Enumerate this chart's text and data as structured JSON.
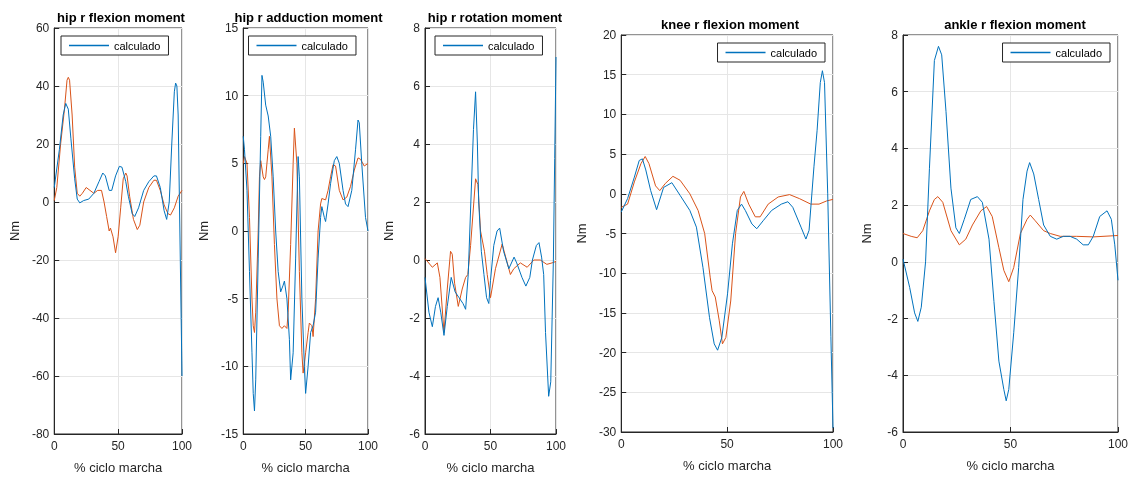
{
  "chart_data": [
    {
      "type": "line",
      "title": "hip r flexion moment",
      "xlabel": "% ciclo marcha",
      "ylabel": "Nm",
      "xlim": [
        0,
        100
      ],
      "xticks": [
        0,
        50,
        100
      ],
      "ylim": [
        -80,
        60
      ],
      "yticks": [
        -80,
        -60,
        -40,
        -20,
        0,
        20,
        40,
        60
      ],
      "grid": true,
      "legend": "top",
      "series": [
        {
          "name": "calculado",
          "color": "#0072bd",
          "x": [
            0,
            4,
            7,
            9,
            11,
            13,
            16,
            18,
            20,
            23,
            27,
            31,
            35,
            38,
            40,
            43,
            45,
            48,
            51,
            53,
            56,
            58,
            61,
            63,
            66,
            70,
            74,
            78,
            80,
            83,
            86,
            88,
            90,
            92,
            94,
            95,
            96,
            97,
            98,
            99,
            100
          ],
          "values": [
            5,
            18,
            30,
            34,
            32,
            22,
            8,
            1,
            -0.3,
            0.5,
            1,
            3,
            7,
            10,
            9,
            4,
            4,
            9,
            12.3,
            12,
            7,
            2,
            -4,
            -5,
            -2,
            4,
            7,
            9,
            9,
            5,
            -3,
            -6,
            0,
            20,
            38,
            41,
            40,
            30,
            0,
            -30,
            -60
          ]
        },
        {
          "color": "#d95319",
          "x": [
            0,
            2,
            5,
            8,
            10,
            11,
            12,
            14,
            16,
            18,
            20,
            22,
            25,
            28,
            31,
            34,
            37,
            39,
            41,
            43,
            44,
            46,
            48,
            50,
            52,
            54,
            56,
            57,
            59,
            62,
            65,
            67,
            70,
            74,
            78,
            80,
            83,
            86,
            89,
            91,
            94,
            97,
            100
          ],
          "values": [
            0.5,
            5,
            20,
            32,
            42,
            43,
            42,
            30,
            12,
            3,
            2,
            3,
            5,
            4,
            3,
            4,
            4,
            0,
            -5,
            -10,
            -9,
            -12,
            -17.5,
            -12,
            -2,
            8,
            10,
            9,
            2,
            -6,
            -9.5,
            -8,
            0,
            5,
            7.5,
            7.5,
            4,
            -1,
            -4,
            -4.5,
            -2,
            2,
            4
          ]
        }
      ]
    },
    {
      "type": "line",
      "title": "hip r adduction moment",
      "xlabel": "% ciclo marcha",
      "ylabel": "Nm",
      "xlim": [
        0,
        100
      ],
      "xticks": [
        0,
        50,
        100
      ],
      "ylim": [
        -15,
        15
      ],
      "yticks": [
        -15,
        -10,
        -5,
        0,
        5,
        10,
        15
      ],
      "grid": true,
      "legend": "top",
      "series": [
        {
          "name": "calculado",
          "color": "#0072bd",
          "x": [
            0,
            1,
            3,
            5,
            7,
            8,
            9,
            10,
            12,
            14,
            15,
            16,
            18,
            20,
            22,
            24,
            26,
            28,
            30,
            32,
            33,
            35,
            37,
            38,
            40,
            42,
            44,
            45,
            47,
            49,
            50,
            52,
            54,
            56,
            58,
            60,
            62,
            63,
            65,
            66,
            68,
            70,
            73,
            75,
            77,
            80,
            82,
            84,
            87,
            90,
            92,
            93,
            95,
            98,
            100
          ],
          "values": [
            7,
            6,
            3,
            -3,
            -9,
            -12,
            -13.3,
            -11,
            -2,
            7,
            11.5,
            11,
            9.3,
            8.5,
            7,
            4,
            0,
            -3,
            -4.5,
            -4,
            -3.7,
            -5,
            -8,
            -11,
            -9,
            -2,
            5.5,
            4,
            -5,
            -10,
            -12,
            -10,
            -7.5,
            -7,
            -6,
            -2,
            1,
            1.8,
            1,
            0.7,
            2,
            3.5,
            5.2,
            5.5,
            5,
            3,
            2,
            1.8,
            3,
            6,
            8.2,
            8,
            5,
            1,
            0
          ]
        },
        {
          "color": "#d95319",
          "x": [
            0,
            1,
            3,
            5,
            7,
            8,
            9,
            10,
            12,
            13,
            14,
            16,
            17,
            18,
            20,
            21,
            23,
            25,
            27,
            29,
            31,
            33,
            35,
            36,
            38,
            40,
            41,
            43,
            45,
            47,
            48,
            50,
            52,
            53,
            55,
            56,
            58,
            60,
            62,
            63,
            66,
            68,
            70,
            72,
            74,
            77,
            80,
            83,
            86,
            89,
            92,
            94,
            97,
            100
          ],
          "values": [
            5,
            5.5,
            5,
            1,
            -5,
            -7,
            -7.5,
            -6,
            0,
            4,
            5.2,
            4,
            3.8,
            4,
            6,
            7,
            4,
            -1,
            -5,
            -7,
            -7.2,
            -7,
            -7.2,
            -6,
            -1,
            5,
            7.6,
            5,
            -3,
            -9,
            -10.5,
            -9,
            -7.5,
            -6.8,
            -7,
            -7.8,
            -5,
            0,
            2,
            2.4,
            2.3,
            3,
            4,
            4.9,
            4.8,
            3,
            2.3,
            2.5,
            3.3,
            4.5,
            5.4,
            5.3,
            4.8,
            5
          ]
        }
      ]
    },
    {
      "type": "line",
      "title": "hip r rotation moment",
      "xlabel": "% ciclo marcha",
      "ylabel": "Nm",
      "xlim": [
        0,
        100
      ],
      "xticks": [
        0,
        50,
        100
      ],
      "ylim": [
        -6,
        8
      ],
      "yticks": [
        -6,
        -4,
        -2,
        0,
        2,
        4,
        6,
        8
      ],
      "grid": true,
      "legend": "top",
      "series": [
        {
          "name": "calculado",
          "color": "#0072bd",
          "x": [
            0,
            3,
            5.6,
            8,
            10,
            12,
            14.5,
            17,
            20,
            23,
            26,
            29,
            31,
            33,
            35,
            37,
            38.6,
            40,
            41,
            43,
            45,
            47,
            48.7,
            50,
            52.5,
            55,
            57,
            60,
            64,
            68,
            70,
            74,
            77,
            80,
            82,
            85,
            87,
            89,
            90.6,
            92,
            94.4,
            96,
            98,
            99,
            100
          ],
          "values": [
            -0.6,
            -1.8,
            -2.3,
            -1.6,
            -1.3,
            -1.8,
            -2.6,
            -1.6,
            -0.6,
            -1.1,
            -1.3,
            -1.5,
            -1.7,
            -0.5,
            2,
            4.5,
            5.8,
            4,
            2,
            0.3,
            -0.5,
            -1.3,
            -1.5,
            -0.7,
            0.5,
            1,
            1.1,
            0.3,
            -0.3,
            0.1,
            -0.1,
            -0.6,
            -0.9,
            -0.6,
            0,
            0.5,
            0.6,
            0.1,
            -0.5,
            -2.5,
            -4.7,
            -4.2,
            0,
            3.5,
            7
          ]
        },
        {
          "color": "#d95319",
          "x": [
            0,
            5.6,
            9.4,
            11.4,
            14.5,
            17,
            19.5,
            20.8,
            22.6,
            25.4,
            28.4,
            31,
            32.7,
            34.8,
            38.6,
            40.4,
            42.4,
            45.4,
            47.5,
            50,
            53.8,
            58.9,
            62.2,
            65.2,
            67.8,
            72.8,
            78,
            83,
            88,
            93,
            97,
            100
          ],
          "values": [
            0.05,
            -0.25,
            -0.1,
            -0.6,
            -2.5,
            -1,
            0.3,
            0.2,
            -0.8,
            -1.6,
            -1,
            -0.6,
            -0.5,
            0.5,
            2.8,
            2.6,
            1,
            0.3,
            -0.5,
            -1.3,
            -0.3,
            0.55,
            0,
            -0.5,
            -0.3,
            -0.1,
            -0.25,
            0,
            0,
            -0.15,
            -0.1,
            -0.05
          ]
        }
      ]
    },
    {
      "type": "line",
      "title": "knee r flexion moment",
      "xlabel": "% ciclo marcha",
      "ylabel": "Nm",
      "xlim": [
        0,
        100
      ],
      "xticks": [
        0,
        50,
        100
      ],
      "ylim": [
        -30,
        20
      ],
      "yticks": [
        -30,
        -25,
        -20,
        -15,
        -10,
        -5,
        0,
        5,
        10,
        15,
        20
      ],
      "grid": true,
      "legend": "top right",
      "series": [
        {
          "name": "calculado",
          "color": "#0072bd",
          "x": [
            0,
            3,
            6.2,
            8.5,
            10,
            11.6,
            13.9,
            16.7,
            20,
            23.9,
            27.8,
            32.4,
            35.5,
            38.6,
            41.7,
            43.9,
            45.5,
            47.5,
            50.2,
            52.5,
            54.8,
            56.8,
            58.6,
            61.7,
            64,
            67,
            71,
            75.6,
            78.7,
            81,
            84.9,
            87.2,
            88.7,
            91,
            92.5,
            94,
            95,
            96,
            97.5,
            99,
            100
          ],
          "values": [
            -2.3,
            -0.6,
            2.1,
            4.2,
            4.4,
            3,
            0.4,
            -2,
            0.8,
            1.4,
            -0.2,
            -2.1,
            -4.2,
            -9.3,
            -15.6,
            -18.9,
            -19.7,
            -18.1,
            -12.6,
            -6.3,
            -2.1,
            -1.3,
            -2.1,
            -3.8,
            -4.4,
            -3.4,
            -2.1,
            -1.3,
            -1,
            -1.7,
            -4.2,
            -5.7,
            -4.6,
            3.4,
            8,
            14,
            15.5,
            14,
            0,
            -18,
            -29.5
          ]
        },
        {
          "color": "#d95319",
          "x": [
            0,
            3,
            6.2,
            9.3,
            11.3,
            13.1,
            16.2,
            18.2,
            20.8,
            24.4,
            27.8,
            32.4,
            36.3,
            39.4,
            42,
            42.9,
            44.4,
            46.3,
            47.8,
            49.4,
            51.7,
            54,
            56.3,
            57.9,
            60.2,
            63.3,
            65.6,
            69.4,
            74.1,
            79.5,
            84.1,
            89.5,
            93.4,
            97,
            100
          ],
          "values": [
            -1.7,
            -1.3,
            1.5,
            3.8,
            4.7,
            3.8,
            1,
            0.4,
            1.3,
            2.2,
            1.7,
            0,
            -2.1,
            -5,
            -10.5,
            -12.2,
            -13,
            -16,
            -18.9,
            -18.1,
            -13.5,
            -5,
            -0.4,
            0.3,
            -1.3,
            -2.9,
            -2.9,
            -1.3,
            -0.4,
            -0.1,
            -0.6,
            -1.3,
            -1.3,
            -0.9,
            -0.7
          ]
        }
      ]
    },
    {
      "type": "line",
      "title": "ankle r flexion moment",
      "xlabel": "% ciclo marcha",
      "ylabel": "Nm",
      "xlim": [
        0,
        100
      ],
      "xticks": [
        0,
        50,
        100
      ],
      "ylim": [
        -6,
        8
      ],
      "yticks": [
        -6,
        -4,
        -2,
        0,
        2,
        4,
        6,
        8
      ],
      "grid": true,
      "legend": "top right",
      "series": [
        {
          "name": "calculado",
          "color": "#0072bd",
          "x": [
            0,
            3.1,
            5.4,
            6.9,
            8.5,
            10.5,
            12.3,
            14.6,
            16.5,
            18,
            20,
            22.3,
            24.6,
            26.2,
            28.5,
            31.5,
            34.6,
            36.9,
            40,
            42.3,
            44.6,
            46.9,
            48,
            49.2,
            51.5,
            53.8,
            55.8,
            57.7,
            58.9,
            60.8,
            63.1,
            65.4,
            68.5,
            71.5,
            74.6,
            77.7,
            80.8,
            83.8,
            86.2,
            88.5,
            91.5,
            94.9,
            96.9,
            98.5,
            100
          ],
          "values": [
            0.1,
            -0.9,
            -1.8,
            -2.1,
            -1.6,
            0,
            3.3,
            7.1,
            7.6,
            7.3,
            5.3,
            2.6,
            1.2,
            1,
            1.5,
            2.2,
            2.3,
            2.1,
            0.8,
            -1.4,
            -3.5,
            -4.5,
            -4.9,
            -4.5,
            -2.5,
            -0.2,
            2.2,
            3.2,
            3.5,
            3.1,
            2.2,
            1.3,
            0.9,
            0.8,
            0.9,
            0.9,
            0.8,
            0.6,
            0.6,
            0.9,
            1.6,
            1.8,
            1.5,
            0.6,
            -0.65
          ]
        },
        {
          "color": "#d95319",
          "x": [
            0,
            3.8,
            6.6,
            9.2,
            12.3,
            14.6,
            16.2,
            18.5,
            22.3,
            26.2,
            29.2,
            32.3,
            36.2,
            38.9,
            41.5,
            44.6,
            46.9,
            49.2,
            51.5,
            54.6,
            57.7,
            59.2,
            61.5,
            65.4,
            68.5,
            73.1,
            80.8,
            88.5,
            100
          ],
          "values": [
            1,
            0.9,
            0.85,
            1.1,
            1.8,
            2.2,
            2.3,
            2.1,
            1.1,
            0.6,
            0.8,
            1.3,
            1.8,
            1.95,
            1.6,
            0.5,
            -0.3,
            -0.7,
            -0.2,
            1,
            1.5,
            1.65,
            1.45,
            1.1,
            1,
            0.9,
            0.9,
            0.88,
            0.93
          ]
        }
      ]
    }
  ]
}
